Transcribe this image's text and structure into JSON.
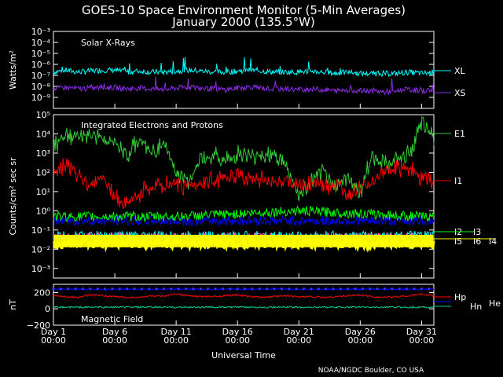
{
  "title_line1": "GOES-10 Space Environment Monitor (5-Min Averages)",
  "title_line2": "January 2000 (135.5°W)",
  "credit": "NOAA/NGDC Boulder, CO USA",
  "xlabel": "Universal Time",
  "x_ticks": [
    {
      "day": "Day 1",
      "time": "00:00"
    },
    {
      "day": "Day 6",
      "time": "00:00"
    },
    {
      "day": "Day 11",
      "time": "00:00"
    },
    {
      "day": "Day 16",
      "time": "00:00"
    },
    {
      "day": "Day 21",
      "time": "00:00"
    },
    {
      "day": "Day 26",
      "time": "00:00"
    },
    {
      "day": "Day 31",
      "time": "00:00"
    }
  ],
  "panels": {
    "xray": {
      "title": "Solar X-Rays",
      "ylabel": "Watts/m²",
      "y_ticks": [
        "10⁻³",
        "10⁻⁴",
        "10⁻⁵",
        "10⁻⁶",
        "10⁻⁷",
        "10⁻⁸",
        "10⁻⁹"
      ],
      "legend": [
        {
          "name": "XL",
          "color": "#00ffff"
        },
        {
          "name": "XS",
          "color": "#8a2be2"
        }
      ]
    },
    "particles": {
      "title": "Integrated Electrons and Protons",
      "ylabel": "Counts/cm² sec sr",
      "y_ticks": [
        "10⁵",
        "10⁴",
        "10³",
        "10²",
        "10¹",
        "10⁰",
        "10⁻¹",
        "10⁻²",
        "10⁻³"
      ],
      "legend": [
        {
          "name": "E1",
          "color": "#33cc33"
        },
        {
          "name": "I1",
          "color": "#ff0000"
        },
        {
          "name": "I2",
          "color": "#0000ff"
        },
        {
          "name": "I3",
          "color": "#00ff00"
        },
        {
          "name": "I5",
          "color": "#00ffff"
        },
        {
          "name": "I6",
          "color": "#ff66cc"
        },
        {
          "name": "I4",
          "color": "#ffff00"
        }
      ]
    },
    "mag": {
      "title": "Magnetic Field",
      "ylabel": "nT",
      "y_ticks": [
        "200",
        "0",
        "−200"
      ],
      "legend": [
        {
          "name": "Hp",
          "color": "#ff0000"
        },
        {
          "name": "Hn",
          "color": "#00cc99"
        },
        {
          "name": "He",
          "color": "#0000ff"
        }
      ]
    }
  },
  "chart_data": [
    {
      "type": "line",
      "title": "Solar X-Rays",
      "ylabel": "Watts/m²",
      "scale": "log",
      "ylim": [
        1e-10,
        0.001
      ],
      "xlim": [
        1,
        32
      ],
      "series": [
        {
          "name": "XL",
          "x": [
            1,
            2,
            3,
            4,
            5,
            6,
            7,
            8,
            9,
            10,
            11,
            12,
            13,
            14,
            15,
            16,
            17,
            18,
            19,
            20,
            21,
            22,
            23,
            24,
            25,
            26,
            27,
            28,
            29,
            30,
            31,
            32
          ],
          "y": [
            2e-07,
            3e-07,
            2e-07,
            2.5e-07,
            3e-07,
            3e-07,
            2e-07,
            2.5e-07,
            2e-07,
            2e-07,
            2.5e-07,
            3e-07,
            2.5e-07,
            2e-07,
            2e-07,
            2.5e-07,
            3e-07,
            2.5e-07,
            2e-07,
            2e-07,
            2e-07,
            2.5e-07,
            2e-07,
            1.5e-07,
            2e-07,
            1.5e-07,
            1.5e-07,
            1.5e-07,
            1.5e-07,
            2e-07,
            1.5e-07,
            2e-07
          ]
        },
        {
          "name": "XS",
          "x": [
            1,
            2,
            3,
            4,
            5,
            6,
            7,
            8,
            9,
            10,
            11,
            12,
            13,
            14,
            15,
            16,
            17,
            18,
            19,
            20,
            21,
            22,
            23,
            24,
            25,
            26,
            27,
            28,
            29,
            30,
            31,
            32
          ],
          "y": [
            6e-09,
            8e-09,
            6e-09,
            7e-09,
            8e-09,
            8e-09,
            6e-09,
            7e-09,
            6e-09,
            5e-09,
            7e-09,
            9e-09,
            7e-09,
            6e-09,
            5e-09,
            7e-09,
            9e-09,
            7e-09,
            6e-09,
            6e-09,
            5e-09,
            6e-09,
            5e-09,
            4e-09,
            5e-09,
            4e-09,
            4e-09,
            3e-09,
            4e-09,
            5e-09,
            4e-09,
            5e-09
          ]
        }
      ]
    },
    {
      "type": "line",
      "title": "Integrated Electrons and Protons",
      "ylabel": "Counts/cm² sec sr",
      "scale": "log",
      "ylim": [
        0.001,
        100000.0
      ],
      "xlim": [
        1,
        32
      ],
      "series": [
        {
          "name": "E1",
          "x": [
            1,
            2,
            3,
            4,
            5,
            6,
            7,
            8,
            9,
            10,
            11,
            12,
            13,
            14,
            15,
            16,
            17,
            18,
            19,
            20,
            21,
            22,
            23,
            24,
            25,
            26,
            27,
            28,
            29,
            30,
            31,
            32
          ],
          "y": [
            3000,
            8000,
            6000,
            10000,
            6000,
            3000,
            800,
            5000,
            1000,
            3000,
            100,
            30,
            500,
            800,
            400,
            1000,
            600,
            800,
            1000,
            200,
            5,
            30,
            100,
            20,
            50,
            10,
            800,
            300,
            500,
            1000,
            30000,
            8000
          ]
        },
        {
          "name": "I1",
          "x": [
            1,
            2,
            3,
            4,
            5,
            6,
            7,
            8,
            9,
            10,
            11,
            12,
            13,
            14,
            15,
            16,
            17,
            18,
            19,
            20,
            21,
            22,
            23,
            24,
            25,
            26,
            27,
            28,
            29,
            30,
            31,
            32
          ],
          "y": [
            100,
            300,
            60,
            20,
            80,
            5,
            2,
            8,
            15,
            20,
            25,
            20,
            30,
            40,
            50,
            60,
            50,
            40,
            30,
            30,
            20,
            30,
            20,
            25,
            10,
            20,
            30,
            100,
            200,
            150,
            50,
            40
          ]
        },
        {
          "name": "I2",
          "x": [
            1,
            11,
            21,
            31,
            32
          ],
          "y": [
            0.3,
            0.3,
            0.3,
            0.3,
            0.3
          ]
        },
        {
          "name": "I3",
          "x": [
            1,
            11,
            21,
            31,
            32
          ],
          "y": [
            0.5,
            0.5,
            1,
            0.5,
            0.5
          ]
        },
        {
          "name": "I5",
          "x": [
            1,
            11,
            21,
            31,
            32
          ],
          "y": [
            0.05,
            0.05,
            0.05,
            0.05,
            0.05
          ]
        },
        {
          "name": "I6",
          "x": [
            1,
            11,
            21,
            31,
            32
          ],
          "y": [
            0.04,
            0.04,
            0.04,
            0.04,
            0.04
          ]
        },
        {
          "name": "I4",
          "x": [
            1,
            11,
            21,
            31,
            32
          ],
          "y": [
            0.02,
            0.02,
            0.02,
            0.02,
            0.02
          ]
        }
      ]
    },
    {
      "type": "line",
      "title": "Magnetic Field",
      "ylabel": "nT",
      "ylim": [
        -200,
        300
      ],
      "xlim": [
        1,
        32
      ],
      "series": [
        {
          "name": "Hp",
          "x": [
            1,
            2,
            3,
            4,
            5,
            6,
            7,
            8,
            9,
            10,
            11,
            12,
            13,
            14,
            15,
            16,
            17,
            18,
            19,
            20,
            21,
            22,
            23,
            24,
            25,
            26,
            27,
            28,
            29,
            30,
            31,
            32
          ],
          "y": [
            160,
            150,
            140,
            170,
            160,
            150,
            140,
            140,
            160,
            150,
            180,
            160,
            150,
            150,
            160,
            170,
            150,
            140,
            150,
            160,
            150,
            150,
            140,
            150,
            160,
            170,
            150,
            140,
            150,
            160,
            180,
            160
          ]
        },
        {
          "name": "Hn",
          "x": [
            1,
            11,
            21,
            31,
            32
          ],
          "y": [
            20,
            20,
            20,
            20,
            20
          ]
        },
        {
          "name": "He",
          "x": [
            1,
            11,
            21,
            31,
            32
          ],
          "y": [
            240,
            240,
            240,
            240,
            240
          ]
        }
      ]
    }
  ]
}
